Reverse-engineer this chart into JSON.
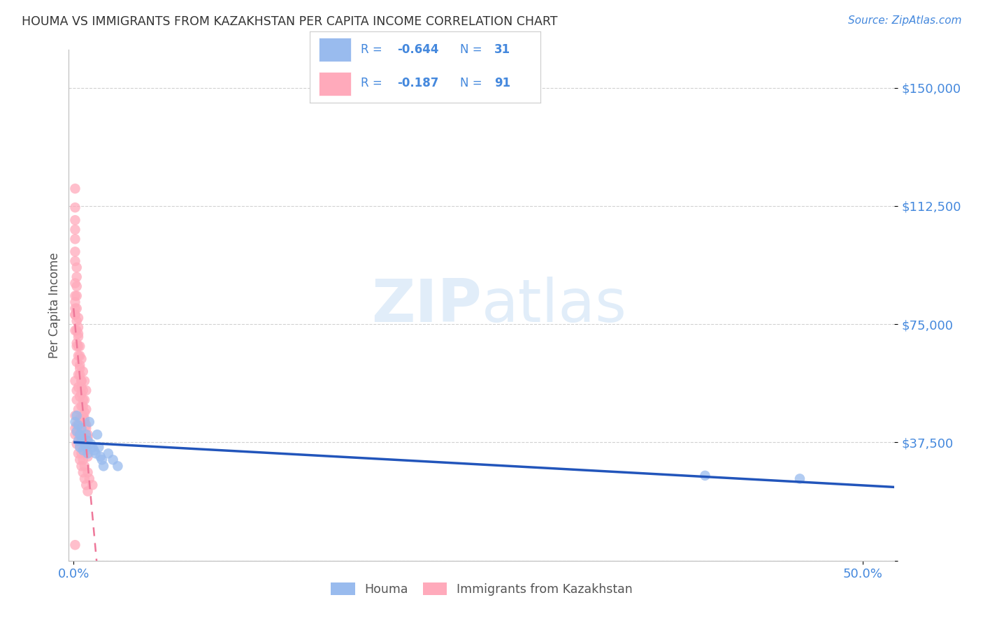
{
  "title": "HOUMA VS IMMIGRANTS FROM KAZAKHSTAN PER CAPITA INCOME CORRELATION CHART",
  "source": "Source: ZipAtlas.com",
  "ylabel": "Per Capita Income",
  "yticks": [
    0,
    37500,
    75000,
    112500,
    150000
  ],
  "ylim": [
    0,
    162000
  ],
  "xlim": [
    -0.003,
    0.52
  ],
  "watermark_zip": "ZIP",
  "watermark_atlas": "atlas",
  "houma_color": "#99BBEE",
  "immigrants_color": "#FFAABB",
  "houma_line_color": "#2255BB",
  "immigrants_line_color": "#EE7799",
  "background_color": "#FFFFFF",
  "grid_color": "#CCCCCC",
  "legend_color": "#4488DD",
  "houma_x": [
    0.001,
    0.002,
    0.002,
    0.003,
    0.003,
    0.004,
    0.004,
    0.005,
    0.005,
    0.006,
    0.006,
    0.007,
    0.008,
    0.008,
    0.009,
    0.009,
    0.01,
    0.011,
    0.012,
    0.013,
    0.014,
    0.015,
    0.016,
    0.017,
    0.018,
    0.019,
    0.022,
    0.025,
    0.028,
    0.4,
    0.46
  ],
  "houma_y": [
    44000,
    46000,
    41000,
    43000,
    38000,
    40000,
    36000,
    42000,
    38000,
    39000,
    35000,
    37000,
    40000,
    36000,
    38000,
    34000,
    44000,
    37000,
    36000,
    35000,
    34000,
    40000,
    36000,
    33000,
    32000,
    30000,
    34000,
    32000,
    30000,
    27000,
    26000
  ],
  "immigrants_x": [
    0.001,
    0.001,
    0.001,
    0.001,
    0.001,
    0.001,
    0.001,
    0.002,
    0.002,
    0.002,
    0.002,
    0.002,
    0.003,
    0.003,
    0.003,
    0.003,
    0.004,
    0.004,
    0.004,
    0.005,
    0.005,
    0.005,
    0.006,
    0.006,
    0.007,
    0.007,
    0.008,
    0.008,
    0.009,
    0.009,
    0.001,
    0.001,
    0.002,
    0.002,
    0.003,
    0.003,
    0.004,
    0.005,
    0.006,
    0.007,
    0.001,
    0.001,
    0.002,
    0.002,
    0.003,
    0.004,
    0.005,
    0.006,
    0.007,
    0.008,
    0.001,
    0.001,
    0.001,
    0.002,
    0.003,
    0.004,
    0.005,
    0.006,
    0.007,
    0.008,
    0.001,
    0.002,
    0.002,
    0.003,
    0.004,
    0.005,
    0.006,
    0.007,
    0.008,
    0.009,
    0.001,
    0.002,
    0.003,
    0.004,
    0.005,
    0.006,
    0.007,
    0.009,
    0.01,
    0.012,
    0.001,
    0.001,
    0.002,
    0.003,
    0.004,
    0.005,
    0.006,
    0.007,
    0.008,
    0.009,
    0.001
  ],
  "immigrants_y": [
    118000,
    112000,
    108000,
    105000,
    102000,
    98000,
    95000,
    93000,
    90000,
    87000,
    84000,
    80000,
    77000,
    74000,
    71000,
    68000,
    65000,
    62000,
    59000,
    57000,
    55000,
    53000,
    51000,
    49000,
    47000,
    45000,
    43000,
    42000,
    40000,
    39000,
    78000,
    73000,
    68000,
    63000,
    59000,
    55000,
    52000,
    49000,
    46000,
    44000,
    82000,
    78000,
    73000,
    69000,
    65000,
    61000,
    57000,
    54000,
    51000,
    48000,
    88000,
    84000,
    80000,
    76000,
    72000,
    68000,
    64000,
    60000,
    57000,
    54000,
    57000,
    54000,
    51000,
    48000,
    45000,
    42000,
    39000,
    37000,
    35000,
    33000,
    46000,
    43000,
    40000,
    37000,
    34000,
    32000,
    30000,
    28000,
    26000,
    24000,
    42000,
    40000,
    37000,
    34000,
    32000,
    30000,
    28000,
    26000,
    24000,
    22000,
    5000
  ]
}
